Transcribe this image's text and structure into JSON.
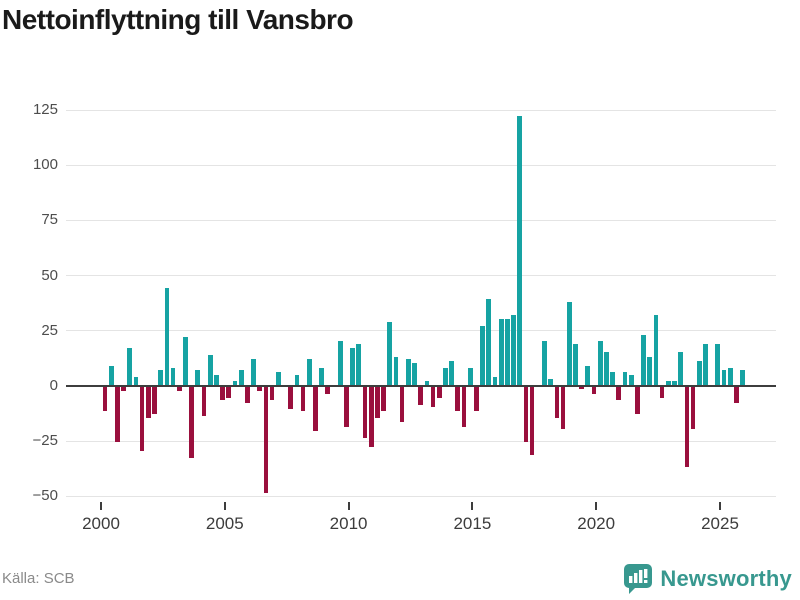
{
  "title": "Nettoinflyttning till Vansbro",
  "source": "Källa: SCB",
  "branding": {
    "name": "Newsworthy"
  },
  "colors": {
    "positive": "#16a3a3",
    "negative": "#9a0f3d",
    "axis": "#3d3d3d",
    "grid": "#e4e4e4",
    "brand": "#38988f",
    "title_text": "#1a1a1a",
    "tick_text": "#4d4d4d"
  },
  "chart_data": {
    "type": "bar",
    "title": "Nettoinflyttning till Vansbro",
    "x_unit": "quarter",
    "start_quarter": "2000Q1",
    "end_quarter": "2025Q4",
    "x_tick_labels": [
      "2000",
      "2005",
      "2010",
      "2015",
      "2020",
      "2025"
    ],
    "y_ticks": [
      125,
      100,
      75,
      50,
      25,
      0,
      -25,
      -50
    ],
    "ylim": [
      -55,
      135
    ],
    "grid": true,
    "legend": false,
    "series_name": "Nettoinflyttning per kvartal",
    "values": [
      -11,
      9,
      -25,
      -2,
      17,
      4,
      -29,
      -14,
      -12,
      7,
      44,
      8,
      -2,
      22,
      -32,
      7,
      -13,
      14,
      5,
      -6,
      -5,
      2,
      7,
      -7,
      12,
      -2,
      -48,
      -6,
      6,
      0,
      -10,
      5,
      -11,
      12,
      -20,
      8,
      -3,
      0,
      20,
      -18,
      17,
      19,
      -23,
      -27,
      -14,
      -11,
      29,
      13,
      -16,
      12,
      10,
      -8,
      2,
      -9,
      -5,
      8,
      11,
      -11,
      -18,
      8,
      -11,
      27,
      39,
      4,
      30,
      30,
      32,
      122,
      -25,
      -31,
      0,
      20,
      3,
      -14,
      -19,
      38,
      19,
      -1,
      9,
      -3,
      20,
      15,
      6,
      -6,
      6,
      5,
      -12,
      23,
      13,
      32,
      -5,
      2,
      2,
      15,
      -36,
      -19,
      11,
      19,
      0,
      19,
      7,
      8,
      -7,
      7
    ]
  }
}
